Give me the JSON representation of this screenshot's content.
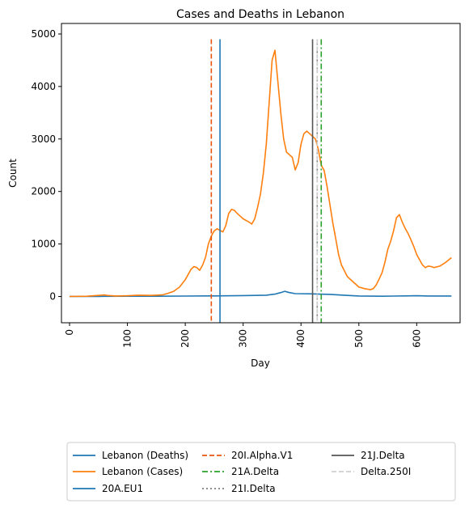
{
  "chart_data": {
    "type": "line",
    "title": "Cases and Deaths in Lebanon",
    "xlabel": "Day",
    "ylabel": "Count",
    "xlim": [
      -14,
      675
    ],
    "ylim": [
      -500,
      5200
    ],
    "xticks": [
      0,
      100,
      200,
      300,
      400,
      500,
      600
    ],
    "yticks": [
      0,
      1000,
      2000,
      3000,
      4000,
      5000
    ],
    "tick_label_rotation_x": 90,
    "grid": false,
    "legend_position": "below-center",
    "legend_columns": 3,
    "series": [
      {
        "name": "Lebanon (Deaths)",
        "color": "#1f77b4",
        "style": "solid",
        "x": [
          0,
          50,
          100,
          150,
          200,
          250,
          300,
          340,
          355,
          365,
          372,
          380,
          390,
          420,
          450,
          480,
          500,
          540,
          560,
          580,
          600,
          620,
          640,
          660
        ],
        "y": [
          0,
          2,
          5,
          5,
          8,
          12,
          18,
          25,
          45,
          75,
          100,
          75,
          55,
          50,
          40,
          20,
          10,
          5,
          8,
          12,
          15,
          10,
          10,
          10
        ]
      },
      {
        "name": "Lebanon (Cases)",
        "color": "#ff7f0e",
        "style": "solid",
        "x": [
          0,
          30,
          50,
          60,
          65,
          80,
          100,
          120,
          140,
          160,
          170,
          180,
          190,
          200,
          210,
          215,
          220,
          225,
          230,
          235,
          240,
          245,
          250,
          255,
          260,
          265,
          270,
          275,
          280,
          285,
          290,
          295,
          300,
          310,
          315,
          320,
          325,
          330,
          335,
          340,
          345,
          350,
          355,
          360,
          365,
          370,
          375,
          380,
          385,
          390,
          395,
          400,
          405,
          410,
          415,
          420,
          425,
          430,
          435,
          440,
          445,
          450,
          455,
          460,
          465,
          470,
          480,
          490,
          500,
          510,
          520,
          525,
          530,
          535,
          540,
          545,
          550,
          555,
          560,
          565,
          570,
          575,
          580,
          585,
          590,
          595,
          600,
          610,
          615,
          620,
          625,
          630,
          640,
          650,
          660
        ],
        "y": [
          0,
          5,
          20,
          30,
          20,
          10,
          15,
          25,
          20,
          30,
          60,
          100,
          180,
          320,
          520,
          570,
          550,
          500,
          600,
          750,
          1000,
          1150,
          1250,
          1290,
          1260,
          1230,
          1350,
          1580,
          1660,
          1640,
          1580,
          1530,
          1480,
          1420,
          1380,
          1480,
          1700,
          1950,
          2350,
          2900,
          3700,
          4500,
          4690,
          4100,
          3500,
          3000,
          2750,
          2700,
          2650,
          2410,
          2550,
          2900,
          3100,
          3150,
          3100,
          3050,
          3000,
          2800,
          2500,
          2400,
          2100,
          1750,
          1400,
          1100,
          800,
          600,
          380,
          280,
          180,
          150,
          130,
          150,
          220,
          330,
          450,
          650,
          900,
          1050,
          1250,
          1500,
          1560,
          1420,
          1300,
          1200,
          1080,
          950,
          800,
          600,
          550,
          580,
          570,
          550,
          580,
          650,
          740
        ]
      }
    ],
    "vertical_lines": [
      {
        "name": "20A.EU1",
        "x": 260,
        "color": "#1f77b4",
        "style": "solid",
        "y_top": 4900
      },
      {
        "name": "20I.Alpha.V1",
        "x": 245,
        "color": "#e8540e",
        "style": "dashed",
        "y_top": 4900
      },
      {
        "name": "21A.Delta",
        "x": 435,
        "color": "#2ca02c",
        "style": "dashdot",
        "y_top": 4900
      },
      {
        "name": "21I.Delta",
        "x": 428,
        "color": "#7f7f7f",
        "style": "dotted",
        "y_top": 4900
      },
      {
        "name": "21J.Delta",
        "x": 420,
        "color": "#555555",
        "style": "solid",
        "y_top": 4900
      },
      {
        "name": "Delta.250I",
        "x": 428,
        "color": "#cfcfcf",
        "style": "dashed",
        "y_top": 4900
      }
    ],
    "legend": [
      [
        "Lebanon (Deaths)",
        "Lebanon (Cases)",
        "20A.EU1"
      ],
      [
        "20I.Alpha.V1",
        "21A.Delta",
        "21I.Delta"
      ],
      [
        "21J.Delta",
        "Delta.250I"
      ]
    ]
  }
}
